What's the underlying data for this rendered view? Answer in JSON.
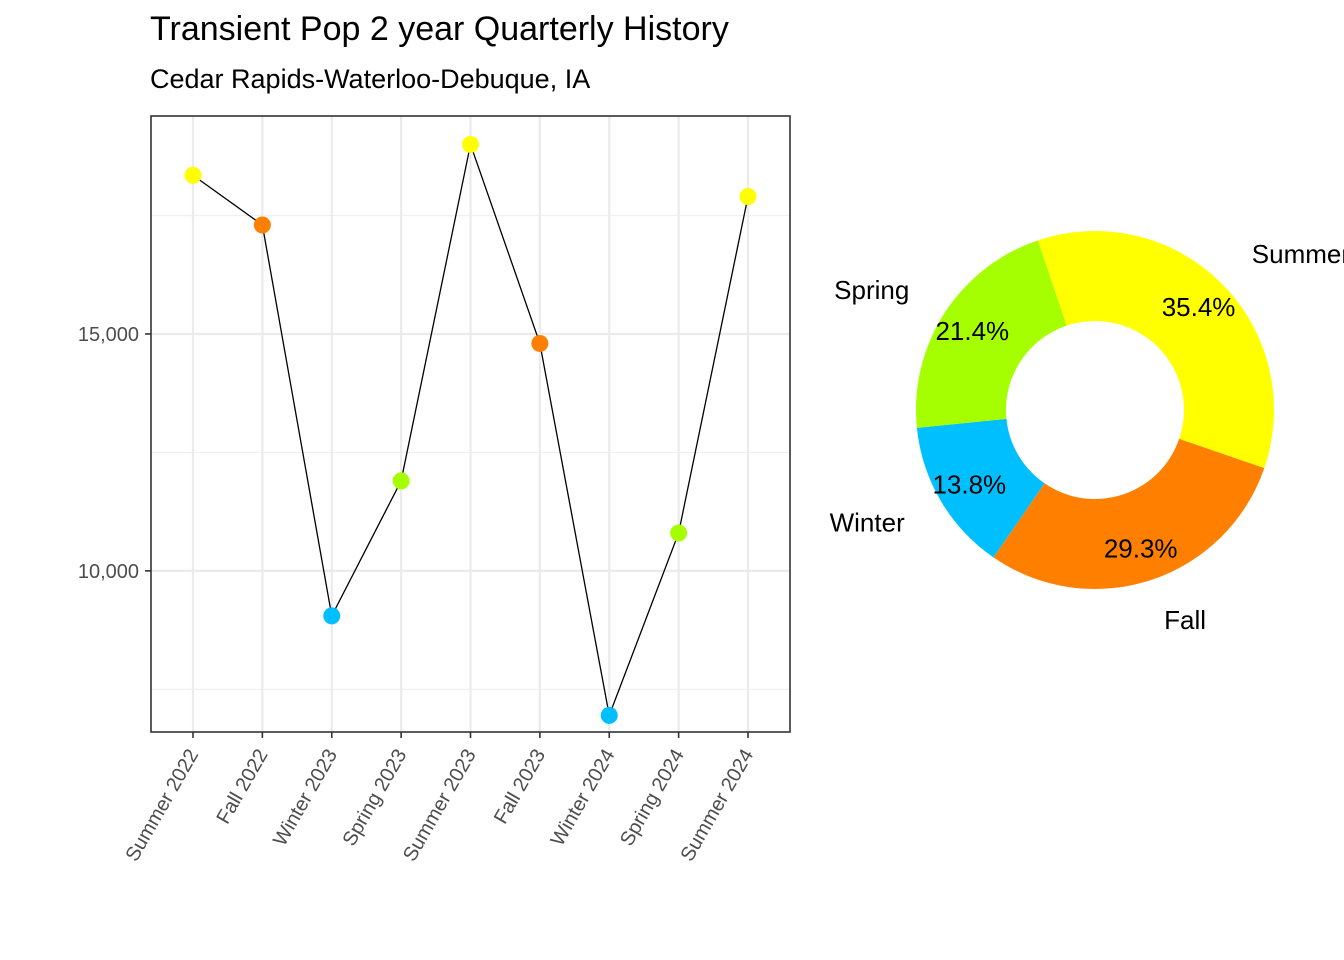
{
  "chart_data": [
    {
      "type": "line",
      "title": "Transient Pop 2 year Quarterly History",
      "subtitle": "Cedar Rapids-Waterloo-Debuque, IA",
      "xlabel": "",
      "ylabel": "",
      "categories": [
        "Summer 2022",
        "Fall 2022",
        "Winter 2023",
        "Spring 2023",
        "Summer 2023",
        "Fall 2023",
        "Winter 2024",
        "Spring 2024",
        "Summer 2024"
      ],
      "seasons": [
        "Summer",
        "Fall",
        "Winter",
        "Spring",
        "Summer",
        "Fall",
        "Winter",
        "Spring",
        "Summer"
      ],
      "values": [
        18350,
        17300,
        9050,
        11900,
        19000,
        14800,
        6950,
        10800,
        17900
      ],
      "ylim": [
        6600,
        19600
      ],
      "y_ticks": [
        10000,
        15000
      ],
      "y_tick_labels": [
        "10,000",
        "15,000"
      ],
      "grid": true,
      "line_color": "#000000"
    },
    {
      "type": "pie",
      "style": "donut",
      "slices": [
        {
          "label": "Summer",
          "pct_label": "35.4%",
          "value": 35.4,
          "color": "#FFFF00"
        },
        {
          "label": "Fall",
          "pct_label": "29.3%",
          "value": 29.3,
          "color": "#FF8000"
        },
        {
          "label": "Winter",
          "pct_label": "13.8%",
          "value": 13.8,
          "color": "#00BFFF"
        },
        {
          "label": "Spring",
          "pct_label": "21.4%",
          "value": 21.4,
          "color": "#A6FF00"
        }
      ]
    }
  ],
  "season_colors": {
    "Summer": "#FFFF00",
    "Fall": "#FF8000",
    "Winter": "#00BFFF",
    "Spring": "#A6FF00"
  }
}
